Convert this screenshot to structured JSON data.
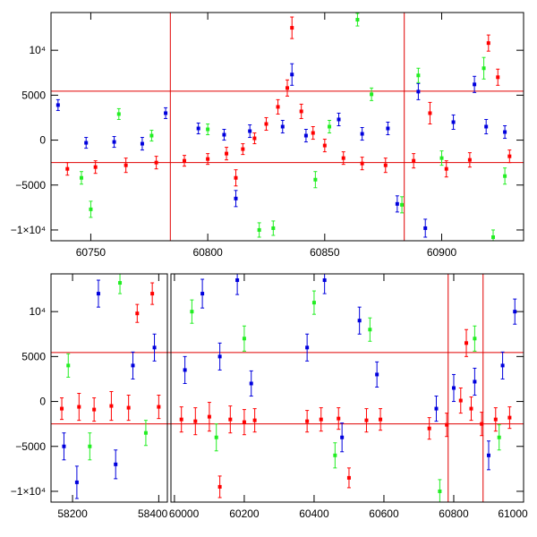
{
  "colors": {
    "axis": "#000000",
    "ref": "#e00000",
    "red": "#ff0000",
    "blue": "#0000dd",
    "green": "#22ee22"
  },
  "chart_data": [
    {
      "type": "scatter",
      "title": "",
      "xlabel": "",
      "ylabel": "",
      "xlim": [
        60733,
        60935
      ],
      "ylim": [
        -11200,
        14200
      ],
      "xticks": [
        {
          "v": 60750,
          "label": "60750"
        },
        {
          "v": 60800,
          "label": "60800"
        },
        {
          "v": 60850,
          "label": "60850"
        },
        {
          "v": 60900,
          "label": "60900"
        }
      ],
      "yticks": [
        {
          "v": -10000,
          "label": "−1×10⁴"
        },
        {
          "v": -5000,
          "label": "−5000"
        },
        {
          "v": 0,
          "label": "0"
        },
        {
          "v": 5000,
          "label": "5000"
        },
        {
          "v": 10000,
          "label": "10⁴"
        }
      ],
      "hlines": [
        5450,
        -2500
      ],
      "vlines": [
        60784,
        60884
      ],
      "series": [
        {
          "name": "red",
          "color": "#ff0000",
          "points": [
            {
              "x": 60740,
              "y": -3200,
              "e": 700
            },
            {
              "x": 60752,
              "y": -3000,
              "e": 700
            },
            {
              "x": 60765,
              "y": -2800,
              "e": 800
            },
            {
              "x": 60778,
              "y": -2500,
              "e": 700
            },
            {
              "x": 60790,
              "y": -2300,
              "e": 600
            },
            {
              "x": 60800,
              "y": -2100,
              "e": 600
            },
            {
              "x": 60808,
              "y": -1500,
              "e": 700
            },
            {
              "x": 60812,
              "y": -4200,
              "e": 900
            },
            {
              "x": 60815,
              "y": -1000,
              "e": 600
            },
            {
              "x": 60820,
              "y": 200,
              "e": 600
            },
            {
              "x": 60825,
              "y": 1800,
              "e": 700
            },
            {
              "x": 60830,
              "y": 3700,
              "e": 800
            },
            {
              "x": 60834,
              "y": 5800,
              "e": 900
            },
            {
              "x": 60836,
              "y": 12500,
              "e": 1200
            },
            {
              "x": 60840,
              "y": 3200,
              "e": 800
            },
            {
              "x": 60845,
              "y": 800,
              "e": 700
            },
            {
              "x": 60850,
              "y": -600,
              "e": 700
            },
            {
              "x": 60858,
              "y": -2000,
              "e": 700
            },
            {
              "x": 60866,
              "y": -2600,
              "e": 700
            },
            {
              "x": 60876,
              "y": -2800,
              "e": 800
            },
            {
              "x": 60888,
              "y": -2300,
              "e": 800
            },
            {
              "x": 60895,
              "y": 3000,
              "e": 1200
            },
            {
              "x": 60902,
              "y": -3200,
              "e": 900
            },
            {
              "x": 60912,
              "y": -2200,
              "e": 800
            },
            {
              "x": 60920,
              "y": 10800,
              "e": 900
            },
            {
              "x": 60924,
              "y": 7000,
              "e": 900
            },
            {
              "x": 60929,
              "y": -1800,
              "e": 700
            }
          ]
        },
        {
          "name": "blue",
          "color": "#0000dd",
          "points": [
            {
              "x": 60736,
              "y": 3900,
              "e": 600
            },
            {
              "x": 60748,
              "y": -300,
              "e": 600
            },
            {
              "x": 60760,
              "y": -200,
              "e": 600
            },
            {
              "x": 60772,
              "y": -400,
              "e": 700
            },
            {
              "x": 60782,
              "y": 3000,
              "e": 600
            },
            {
              "x": 60796,
              "y": 1300,
              "e": 600
            },
            {
              "x": 60807,
              "y": 600,
              "e": 600
            },
            {
              "x": 60812,
              "y": -6500,
              "e": 900
            },
            {
              "x": 60818,
              "y": 1000,
              "e": 700
            },
            {
              "x": 60832,
              "y": 1500,
              "e": 700
            },
            {
              "x": 60836,
              "y": 7300,
              "e": 1200
            },
            {
              "x": 60842,
              "y": 500,
              "e": 700
            },
            {
              "x": 60856,
              "y": 2300,
              "e": 700
            },
            {
              "x": 60866,
              "y": 700,
              "e": 700
            },
            {
              "x": 60877,
              "y": 1300,
              "e": 700
            },
            {
              "x": 60881,
              "y": -7100,
              "e": 900
            },
            {
              "x": 60890,
              "y": 5400,
              "e": 900
            },
            {
              "x": 60893,
              "y": -9800,
              "e": 1000
            },
            {
              "x": 60905,
              "y": 2000,
              "e": 800
            },
            {
              "x": 60914,
              "y": 6200,
              "e": 900
            },
            {
              "x": 60919,
              "y": 1500,
              "e": 800
            },
            {
              "x": 60927,
              "y": 900,
              "e": 700
            }
          ]
        },
        {
          "name": "green",
          "color": "#22ee22",
          "points": [
            {
              "x": 60746,
              "y": -4200,
              "e": 700
            },
            {
              "x": 60750,
              "y": -7700,
              "e": 900
            },
            {
              "x": 60762,
              "y": 2900,
              "e": 600
            },
            {
              "x": 60776,
              "y": 500,
              "e": 600
            },
            {
              "x": 60800,
              "y": 1200,
              "e": 600
            },
            {
              "x": 60822,
              "y": -10000,
              "e": 800
            },
            {
              "x": 60828,
              "y": -9800,
              "e": 800
            },
            {
              "x": 60846,
              "y": -4400,
              "e": 900
            },
            {
              "x": 60852,
              "y": 1500,
              "e": 700
            },
            {
              "x": 60864,
              "y": 13400,
              "e": 700
            },
            {
              "x": 60870,
              "y": 5100,
              "e": 700
            },
            {
              "x": 60883,
              "y": -7200,
              "e": 900
            },
            {
              "x": 60890,
              "y": 7200,
              "e": 800
            },
            {
              "x": 60900,
              "y": -2000,
              "e": 800
            },
            {
              "x": 60918,
              "y": 8000,
              "e": 1200
            },
            {
              "x": 60922,
              "y": -10800,
              "e": 800
            },
            {
              "x": 60927,
              "y": -4000,
              "e": 900
            }
          ]
        }
      ]
    },
    {
      "type": "scatter",
      "title": "",
      "xlabel": "",
      "ylabel": "",
      "xlim": [
        58150,
        61000
      ],
      "ylim": [
        -11200,
        14200
      ],
      "xbreak": [
        58420,
        59990
      ],
      "xticks": [
        {
          "v": 58200,
          "label": "58200"
        },
        {
          "v": 58400,
          "label": "58400"
        },
        {
          "v": 60000,
          "label": "60000"
        },
        {
          "v": 60200,
          "label": "60200"
        },
        {
          "v": 60400,
          "label": "60400"
        },
        {
          "v": 60600,
          "label": "60600"
        },
        {
          "v": 60800,
          "label": "60800"
        },
        {
          "v": 61000,
          "label": "61000"
        }
      ],
      "yticks": [
        {
          "v": -10000,
          "label": "−1×10⁴"
        },
        {
          "v": -5000,
          "label": "−5000"
        },
        {
          "v": 0,
          "label": "0"
        },
        {
          "v": 5000,
          "label": "5000"
        },
        {
          "v": 10000,
          "label": "10⁴"
        }
      ],
      "hlines": [
        5450,
        -2500
      ],
      "vlines": [
        60784,
        60884
      ],
      "series": [
        {
          "name": "red",
          "color": "#ff0000",
          "points": [
            {
              "x": 58175,
              "y": -800,
              "e": 1200
            },
            {
              "x": 58215,
              "y": -600,
              "e": 1500
            },
            {
              "x": 58250,
              "y": -900,
              "e": 1300
            },
            {
              "x": 58290,
              "y": -500,
              "e": 1600
            },
            {
              "x": 58330,
              "y": -700,
              "e": 1400
            },
            {
              "x": 58350,
              "y": 9800,
              "e": 1000
            },
            {
              "x": 58385,
              "y": 12000,
              "e": 1200
            },
            {
              "x": 58400,
              "y": -600,
              "e": 1300
            },
            {
              "x": 60020,
              "y": -2000,
              "e": 1400
            },
            {
              "x": 60060,
              "y": -2200,
              "e": 1500
            },
            {
              "x": 60100,
              "y": -1700,
              "e": 1600
            },
            {
              "x": 60130,
              "y": -9500,
              "e": 1200
            },
            {
              "x": 60160,
              "y": -2000,
              "e": 1500
            },
            {
              "x": 60200,
              "y": -2300,
              "e": 1400
            },
            {
              "x": 60230,
              "y": -2100,
              "e": 1300
            },
            {
              "x": 60380,
              "y": -2200,
              "e": 1200
            },
            {
              "x": 60420,
              "y": -2000,
              "e": 1300
            },
            {
              "x": 60470,
              "y": -1900,
              "e": 1200
            },
            {
              "x": 60500,
              "y": -8500,
              "e": 1100
            },
            {
              "x": 60550,
              "y": -2100,
              "e": 1300
            },
            {
              "x": 60590,
              "y": -2000,
              "e": 1200
            },
            {
              "x": 60730,
              "y": -3000,
              "e": 1200
            },
            {
              "x": 60780,
              "y": -2600,
              "e": 1300
            },
            {
              "x": 60820,
              "y": 100,
              "e": 1400
            },
            {
              "x": 60836,
              "y": 6500,
              "e": 1500
            },
            {
              "x": 60850,
              "y": -800,
              "e": 1300
            },
            {
              "x": 60880,
              "y": -2500,
              "e": 1300
            },
            {
              "x": 60920,
              "y": -2000,
              "e": 1300
            },
            {
              "x": 60960,
              "y": -1800,
              "e": 1200
            }
          ]
        },
        {
          "name": "blue",
          "color": "#0000dd",
          "points": [
            {
              "x": 58180,
              "y": -5000,
              "e": 1500
            },
            {
              "x": 58210,
              "y": -9000,
              "e": 1800
            },
            {
              "x": 58260,
              "y": 12000,
              "e": 1500
            },
            {
              "x": 58300,
              "y": -7000,
              "e": 1600
            },
            {
              "x": 58340,
              "y": 4000,
              "e": 1500
            },
            {
              "x": 58390,
              "y": 6000,
              "e": 1500
            },
            {
              "x": 60030,
              "y": 3500,
              "e": 1500
            },
            {
              "x": 60080,
              "y": 12000,
              "e": 1600
            },
            {
              "x": 60130,
              "y": 5000,
              "e": 1500
            },
            {
              "x": 60180,
              "y": 13500,
              "e": 1600
            },
            {
              "x": 60220,
              "y": 2000,
              "e": 1400
            },
            {
              "x": 60380,
              "y": 6000,
              "e": 1500
            },
            {
              "x": 60430,
              "y": 13500,
              "e": 1500
            },
            {
              "x": 60480,
              "y": -4000,
              "e": 1600
            },
            {
              "x": 60530,
              "y": 9000,
              "e": 1500
            },
            {
              "x": 60580,
              "y": 3000,
              "e": 1400
            },
            {
              "x": 60750,
              "y": -800,
              "e": 1400
            },
            {
              "x": 60800,
              "y": 1500,
              "e": 1500
            },
            {
              "x": 60860,
              "y": 2200,
              "e": 1500
            },
            {
              "x": 60900,
              "y": -6000,
              "e": 1600
            },
            {
              "x": 60940,
              "y": 4000,
              "e": 1500
            },
            {
              "x": 60975,
              "y": 10000,
              "e": 1400
            }
          ]
        },
        {
          "name": "green",
          "color": "#22ee22",
          "points": [
            {
              "x": 58190,
              "y": 4000,
              "e": 1300
            },
            {
              "x": 58240,
              "y": -5000,
              "e": 1500
            },
            {
              "x": 58310,
              "y": 13200,
              "e": 1200
            },
            {
              "x": 58370,
              "y": -3500,
              "e": 1400
            },
            {
              "x": 60050,
              "y": 10000,
              "e": 1300
            },
            {
              "x": 60120,
              "y": -4000,
              "e": 1500
            },
            {
              "x": 60200,
              "y": 7000,
              "e": 1400
            },
            {
              "x": 60400,
              "y": 11000,
              "e": 1300
            },
            {
              "x": 60460,
              "y": -6000,
              "e": 1400
            },
            {
              "x": 60560,
              "y": 8000,
              "e": 1300
            },
            {
              "x": 60760,
              "y": -10000,
              "e": 1300
            },
            {
              "x": 60860,
              "y": 7000,
              "e": 1400
            },
            {
              "x": 60930,
              "y": -4000,
              "e": 1400
            }
          ]
        }
      ]
    }
  ]
}
